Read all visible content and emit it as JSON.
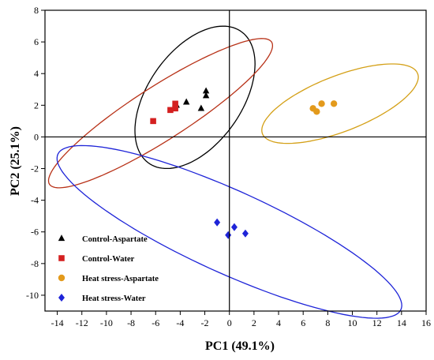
{
  "chart_data": {
    "type": "scatter",
    "title": "",
    "xlabel": "PC1 (49.1%)",
    "ylabel": "PC2 (25.1%)",
    "xlim": [
      -15,
      16
    ],
    "ylim": [
      -11,
      8
    ],
    "xticks": [
      -14,
      -12,
      -10,
      -8,
      -6,
      -4,
      -2,
      0,
      2,
      4,
      6,
      8,
      10,
      12,
      14,
      16
    ],
    "yticks": [
      -10,
      -8,
      -6,
      -4,
      -2,
      0,
      2,
      4,
      6,
      8
    ],
    "grid": false,
    "legend_position": "bottom-left",
    "series": [
      {
        "name": "Control-Aspartate",
        "marker": "triangle",
        "color": "#000000",
        "points": [
          [
            -1.9,
            2.9
          ],
          [
            -1.9,
            2.6
          ],
          [
            -3.5,
            2.2
          ],
          [
            -4.3,
            2.0
          ],
          [
            -2.3,
            1.8
          ]
        ],
        "ellipse": {
          "color": "#000000",
          "center": [
            -2.8,
            2.5
          ],
          "semi_major": 5.7,
          "semi_minor": 3.4,
          "angle_deg": 40
        }
      },
      {
        "name": "Control-Water",
        "marker": "square",
        "color": "#d42020",
        "points": [
          [
            -4.4,
            2.1
          ],
          [
            -4.4,
            1.8
          ],
          [
            -4.8,
            1.7
          ],
          [
            -6.2,
            1.0
          ]
        ],
        "ellipse": {
          "color": "#b83218",
          "center": [
            -5.6,
            1.5
          ],
          "semi_major": 10.1,
          "semi_minor": 1.8,
          "angle_deg": 26
        }
      },
      {
        "name": "Heat stress-Aspartate",
        "marker": "circle",
        "color": "#e39a1c",
        "points": [
          [
            6.8,
            1.8
          ],
          [
            7.5,
            2.1
          ],
          [
            8.5,
            2.1
          ],
          [
            7.1,
            1.6
          ]
        ],
        "ellipse": {
          "color": "#d4a017",
          "center": [
            9.0,
            2.1
          ],
          "semi_major": 6.6,
          "semi_minor": 1.8,
          "angle_deg": 16
        }
      },
      {
        "name": "Heat stress-Water",
        "marker": "diamond",
        "color": "#1e24d8",
        "points": [
          [
            -1.0,
            -5.4
          ],
          [
            0.4,
            -5.7
          ],
          [
            1.3,
            -6.1
          ],
          [
            -0.1,
            -6.2
          ]
        ],
        "ellipse": {
          "color": "#1e24d8",
          "center": [
            0.0,
            -6.0
          ],
          "semi_major": 14.8,
          "semi_minor": 2.7,
          "angle_deg": -19
        }
      }
    ]
  }
}
